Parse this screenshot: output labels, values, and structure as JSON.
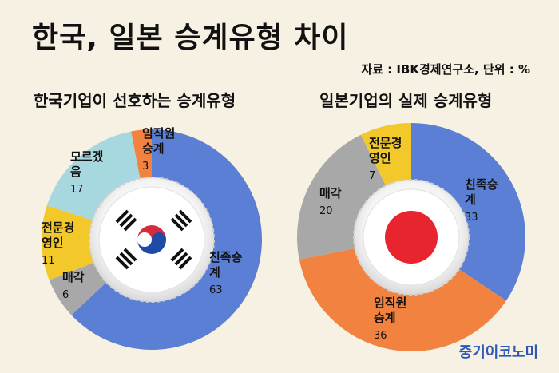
{
  "title": "한국, 일본 승계유형 차이",
  "source": "자료 : IBK경제연구소, 단위 : %",
  "brand": "중기이코노미",
  "chart_data": [
    {
      "type": "pie",
      "title": "한국기업이 선호하는 승계유형",
      "slices": [
        {
          "label": "친족승계",
          "value": 63,
          "color": "#5b7fd4"
        },
        {
          "label": "매각",
          "value": 6,
          "color": "#a8a8a8"
        },
        {
          "label": "전문경영인",
          "value": 11,
          "color": "#f2c82a"
        },
        {
          "label": "모르겠음",
          "value": 17,
          "color": "#a8d8df"
        },
        {
          "label": "임직원승계",
          "value": 3,
          "color": "#f1823f"
        }
      ]
    },
    {
      "type": "pie",
      "title": "일본기업의 실제 승계유형",
      "slices": [
        {
          "label": "친족승계",
          "value": 33,
          "color": "#5b7fd4"
        },
        {
          "label": "임직원승계",
          "value": 36,
          "color": "#f1823f"
        },
        {
          "label": "매각",
          "value": 20,
          "color": "#a8a8a8"
        },
        {
          "label": "전문경영인",
          "value": 7,
          "color": "#f2c82a"
        }
      ]
    }
  ]
}
